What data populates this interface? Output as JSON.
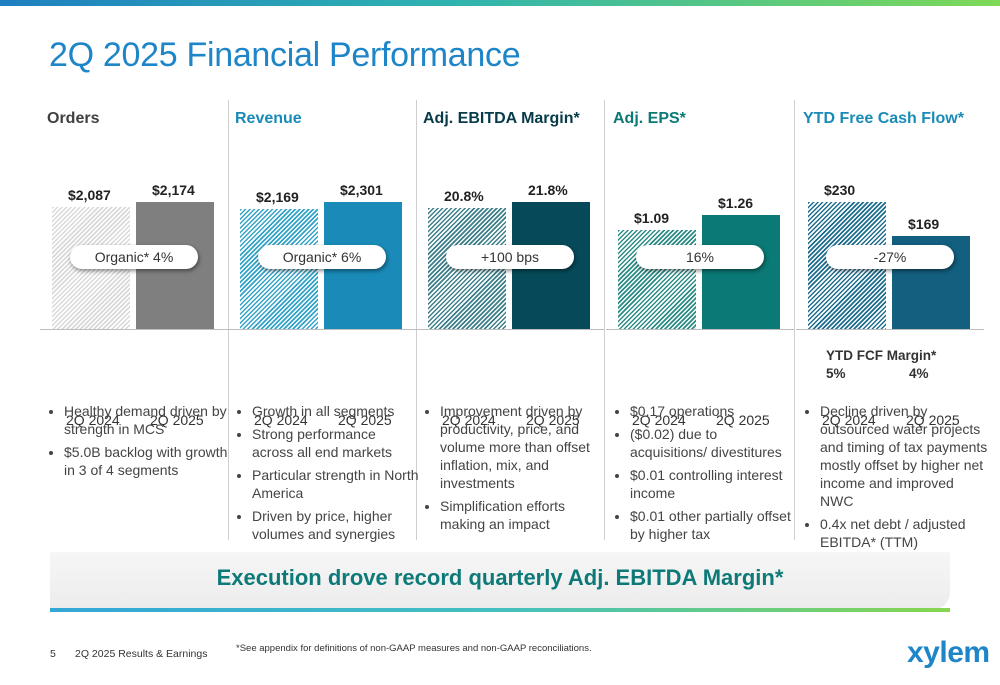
{
  "slide": {
    "title": "2Q 2025 Financial Performance",
    "banner": "Execution drove record quarterly Adj. EBITDA Margin*",
    "page_number": "5",
    "footer_label": "2Q 2025 Results & Earnings",
    "footnote": "*See appendix for definitions of non-GAAP measures and non-GAAP reconciliations.",
    "logo": "xylem"
  },
  "chart_data": [
    {
      "type": "bar",
      "title": "Orders",
      "categories": [
        "2Q 2024",
        "2Q 2025"
      ],
      "values": [
        2087,
        2174
      ],
      "labels": [
        "$2,087",
        "$2,174"
      ],
      "callout": "Organic* 4%",
      "ylim": [
        0,
        2174
      ],
      "colors": [
        "#d9d9d9",
        "#7f7f7f"
      ],
      "title_color": "#404040"
    },
    {
      "type": "bar",
      "title": "Revenue",
      "categories": [
        "2Q 2024",
        "2Q 2025"
      ],
      "values": [
        2169,
        2301
      ],
      "labels": [
        "$2,169",
        "$2,301"
      ],
      "callout": "Organic* 6%",
      "ylim": [
        0,
        2301
      ],
      "colors": [
        "#33a3c7",
        "#1a8bb8"
      ],
      "title_color": "#1a8bb8"
    },
    {
      "type": "bar",
      "title": "Adj. EBITDA Margin*",
      "categories": [
        "2Q 2024",
        "2Q 2025"
      ],
      "values": [
        20.8,
        21.8
      ],
      "labels": [
        "20.8%",
        "21.8%"
      ],
      "callout": "+100 bps",
      "ylim": [
        0,
        21.8
      ],
      "colors": [
        "#3c7f8a",
        "#064a59"
      ],
      "title_color": "#073b4a"
    },
    {
      "type": "bar",
      "title": "Adj. EPS*",
      "categories": [
        "2Q 2024",
        "2Q 2025"
      ],
      "values": [
        1.09,
        1.26
      ],
      "labels": [
        "$1.09",
        "$1.26"
      ],
      "callout": "16%",
      "ylim": [
        0,
        1.4
      ],
      "colors": [
        "#2b8c86",
        "#0b7975"
      ],
      "title_color": "#0b7975"
    },
    {
      "type": "bar",
      "title": "YTD Free Cash Flow*",
      "categories": [
        "2Q 2024",
        "2Q 2025"
      ],
      "values": [
        230,
        169
      ],
      "labels": [
        "$230",
        "$169"
      ],
      "callout": "-27%",
      "ylim": [
        0,
        230
      ],
      "colors": [
        "#1d6d8e",
        "#135f80"
      ],
      "title_color": "#1a8bb8"
    }
  ],
  "fcf_margin": {
    "label": "YTD FCF Margin*",
    "values": [
      "5%",
      "4%"
    ]
  },
  "bullets": [
    [
      "Healthy demand driven by strength in MCS",
      "$5.0B backlog with growth in 3 of 4 segments"
    ],
    [
      "Growth in all segments",
      "Strong performance across all end markets",
      "Particular strength in North America",
      "Driven by price, higher volumes and synergies"
    ],
    [
      "Improvement driven by productivity, price, and volume more than offset inflation, mix, and investments",
      "Simplification efforts making an impact"
    ],
    [
      "$0.17 operations",
      "($0.02) due to acquisitions/ divestitures",
      "$0.01 controlling interest income",
      "$0.01 other partially offset by higher tax"
    ],
    [
      "Decline driven by outsourced water projects and timing of tax payments mostly offset by higher net income and improved NWC",
      "0.4x net debt / adjusted EBITDA* (TTM)"
    ]
  ]
}
